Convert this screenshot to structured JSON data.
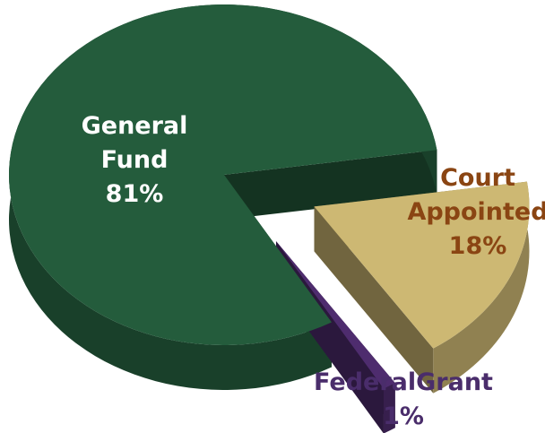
{
  "chart_data": {
    "type": "pie",
    "categories": [
      "General Fund",
      "Court Appointed",
      "FederalGrant"
    ],
    "values": [
      81,
      18,
      1
    ],
    "value_labels": [
      "81%",
      "18%",
      "1%"
    ],
    "colors": [
      "#245c3c",
      "#cdb873",
      "#4e2c6e"
    ]
  }
}
